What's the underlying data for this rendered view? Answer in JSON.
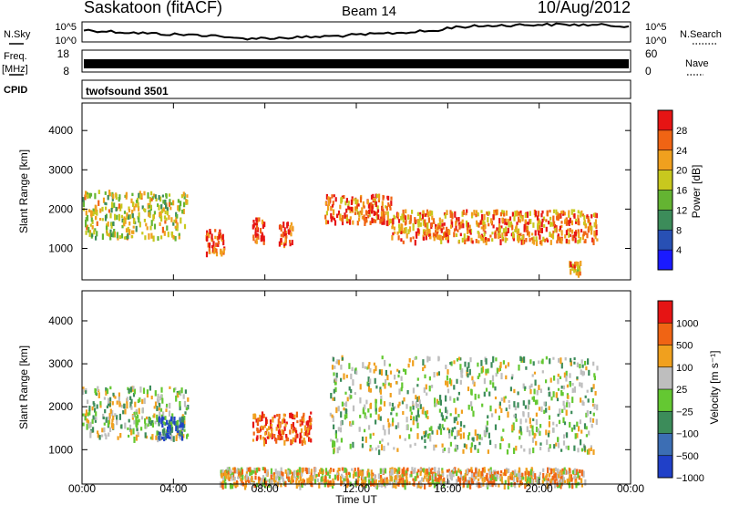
{
  "header": {
    "station": "Saskatoon (fitACF)",
    "beam": "Beam 14",
    "date": "10/Aug/2012"
  },
  "sky_panel": {
    "left_label": "N.Sky",
    "right_label": "N.Search",
    "y_ticks": [
      "10^5",
      "10^0"
    ]
  },
  "freq_panel": {
    "left_label": "Freq.",
    "left_unit": "[MHz]",
    "left_ticks": [
      "18",
      "8"
    ],
    "right_label": "Nave",
    "right_ticks": [
      "60",
      "0"
    ]
  },
  "cpid_panel": {
    "label": "CPID",
    "value": "twofsound 3501"
  },
  "chart_data": [
    {
      "type": "heatmap",
      "ylabel": "Slant Range [km]",
      "y_ticks": [
        1000,
        2000,
        3000,
        4000
      ],
      "ylim": [
        200,
        4700
      ],
      "colorbar": {
        "label": "Power [dB]",
        "ticks": [
          "4",
          "8",
          "12",
          "16",
          "20",
          "24",
          "28"
        ],
        "colors": [
          "#1a1aff",
          "#2850b4",
          "#3c8c5a",
          "#64b432",
          "#c8c81e",
          "#f0a01e",
          "#f06414",
          "#e61414"
        ]
      },
      "bands": [
        {
          "t0": 0.0,
          "t1": 4.6,
          "r0": 1300,
          "r1": 2500,
          "level": 0.55
        },
        {
          "t0": 5.4,
          "t1": 6.2,
          "r0": 900,
          "r1": 1500,
          "level": 0.85
        },
        {
          "t0": 7.4,
          "t1": 8.0,
          "r0": 1200,
          "r1": 1800,
          "level": 0.95
        },
        {
          "t0": 8.6,
          "t1": 9.2,
          "r0": 1100,
          "r1": 1700,
          "level": 0.9
        },
        {
          "t0": 10.6,
          "t1": 13.5,
          "r0": 1700,
          "r1": 2400,
          "level": 0.8
        },
        {
          "t0": 13.5,
          "t1": 22.5,
          "r0": 1200,
          "r1": 2000,
          "level": 0.75
        },
        {
          "t0": 21.3,
          "t1": 21.8,
          "r0": 400,
          "r1": 700,
          "level": 0.7
        }
      ]
    },
    {
      "type": "heatmap",
      "xlabel": "Time UT",
      "ylabel": "Slant Range [km]",
      "x_ticks": [
        "00:00",
        "04:00",
        "08:00",
        "12:00",
        "16:00",
        "20:00",
        "00:00"
      ],
      "y_ticks": [
        1000,
        2000,
        3000,
        4000
      ],
      "ylim": [
        200,
        4700
      ],
      "colorbar": {
        "label": "Velocity [m s⁻¹]",
        "ticks": [
          "1000",
          "500",
          "100",
          "25",
          "−25",
          "−100",
          "−500",
          "−1000"
        ],
        "colors": [
          "#2040c8",
          "#3c6eb4",
          "#3c8c5a",
          "#64c832",
          "#bebebe",
          "#f0a01e",
          "#f06414",
          "#e61414"
        ]
      },
      "bands": [
        {
          "t0": 0.0,
          "t1": 4.6,
          "r0": 1300,
          "r1": 2500,
          "level": 0.5
        },
        {
          "t0": 3.3,
          "t1": 4.4,
          "r0": 1300,
          "r1": 1800,
          "level": 0.2
        },
        {
          "t0": 7.4,
          "t1": 10.0,
          "r0": 1200,
          "r1": 1900,
          "level": 0.85
        },
        {
          "t0": 10.8,
          "t1": 22.5,
          "r0": 1000,
          "r1": 3200,
          "level": 0.5
        },
        {
          "t0": 6.0,
          "t1": 22.0,
          "r0": 200,
          "r1": 600,
          "level": 0.65
        }
      ]
    }
  ]
}
